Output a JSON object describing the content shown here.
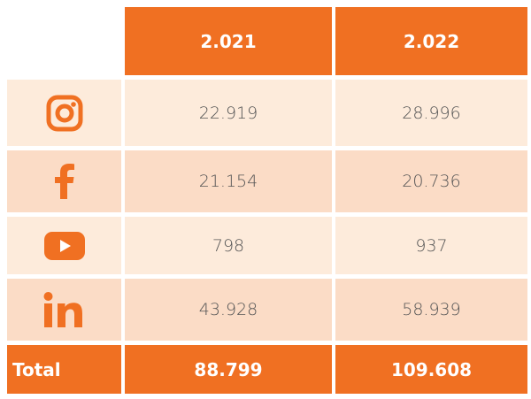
{
  "table": {
    "header": [
      "2.021",
      "2.022"
    ],
    "rows": [
      [
        "22.919",
        "28.996"
      ],
      [
        "21.154",
        "20.736"
      ],
      [
        "798",
        "937"
      ],
      [
        "43.928",
        "58.939"
      ]
    ],
    "total": {
      "label": "Total",
      "values": [
        "88.799",
        "109.608"
      ]
    }
  }
}
